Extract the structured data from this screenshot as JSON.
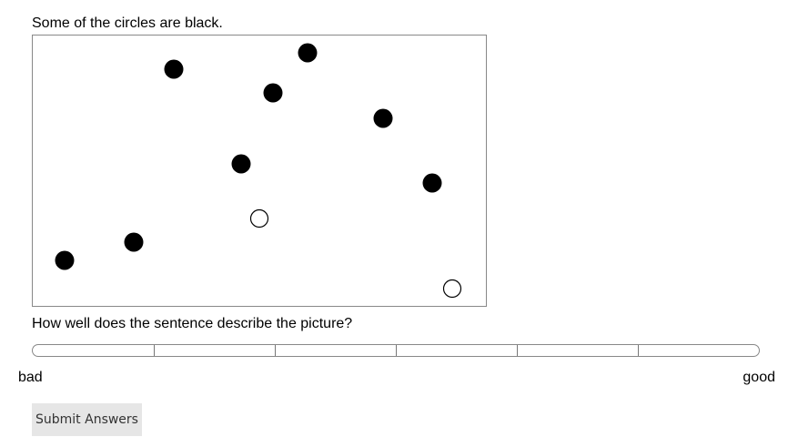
{
  "sentence": "Some of the circles are black.",
  "question": "How well does the sentence describe the picture?",
  "scale": {
    "left_label": "bad",
    "right_label": "good",
    "segments": 6
  },
  "submit_label": "Submit Answers",
  "colors": {
    "filled": "#000000",
    "empty": "#ffffff",
    "stroke": "#000000"
  },
  "circles": [
    {
      "fill": "black"
    },
    {
      "fill": "black"
    },
    {
      "fill": "black"
    },
    {
      "fill": "black"
    },
    {
      "fill": "black"
    },
    {
      "fill": "black"
    },
    {
      "fill": "black"
    },
    {
      "fill": "black"
    },
    {
      "fill": "white"
    },
    {
      "fill": "white"
    }
  ]
}
